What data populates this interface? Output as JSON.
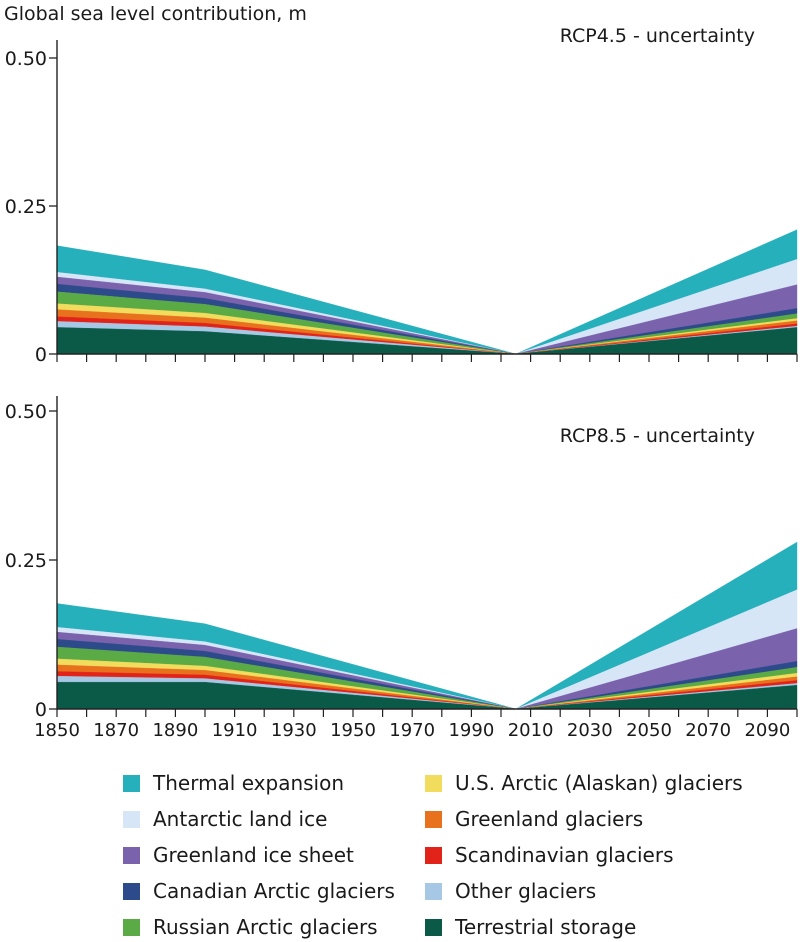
{
  "y_axis_title": "Global sea level contribution, m",
  "chart_data": [
    {
      "type": "area",
      "title": "RCP4.5 - uncertainty",
      "xlabel": "",
      "ylabel": "Global sea level contribution, m",
      "xlim": [
        1850,
        2100
      ],
      "ylim": [
        0,
        0.52
      ],
      "yticks": [
        0,
        0.25,
        0.5
      ],
      "ytick_labels": [
        "0",
        "0.25",
        "0.50"
      ],
      "x": [
        1850,
        1900,
        2005,
        2100
      ],
      "series": [
        {
          "name": "Terrestrial storage",
          "color": "#0b5a48",
          "values": [
            0.045,
            0.038,
            0.0,
            0.045
          ]
        },
        {
          "name": "Other glaciers",
          "color": "#a6c8e4",
          "values": [
            0.01,
            0.008,
            0.0,
            0.002
          ]
        },
        {
          "name": "Scandinavian glaciers",
          "color": "#e2231a",
          "values": [
            0.008,
            0.006,
            0.0,
            0.004
          ]
        },
        {
          "name": "Greenland glaciers",
          "color": "#e8711e",
          "values": [
            0.012,
            0.009,
            0.0,
            0.005
          ]
        },
        {
          "name": "U.S. Arctic (Alaskan) glaciers",
          "color": "#f2dc5d",
          "values": [
            0.01,
            0.008,
            0.0,
            0.004
          ]
        },
        {
          "name": "Russian Arctic glaciers",
          "color": "#5aaa46",
          "values": [
            0.02,
            0.015,
            0.0,
            0.008
          ]
        },
        {
          "name": "Canadian Arctic glaciers",
          "color": "#2d4a8a",
          "values": [
            0.013,
            0.01,
            0.0,
            0.009
          ]
        },
        {
          "name": "Greenland ice sheet",
          "color": "#7b62ad",
          "values": [
            0.012,
            0.01,
            0.0,
            0.04
          ]
        },
        {
          "name": "Antarctic land ice",
          "color": "#d6e6f7",
          "values": [
            0.008,
            0.006,
            0.0,
            0.043
          ]
        },
        {
          "name": "Thermal expansion",
          "color": "#26b0bb",
          "values": [
            0.045,
            0.032,
            0.0,
            0.05
          ]
        }
      ]
    },
    {
      "type": "area",
      "title": "RCP8.5 - uncertainty",
      "xlabel": "",
      "ylabel": "Global sea level contribution, m",
      "xlim": [
        1850,
        2100
      ],
      "ylim": [
        0,
        0.52
      ],
      "yticks": [
        0,
        0.25,
        0.5
      ],
      "ytick_labels": [
        "0",
        "0.25",
        "0.50"
      ],
      "xticks": [
        1850,
        1870,
        1890,
        1910,
        1930,
        1950,
        1970,
        1990,
        2010,
        2030,
        2050,
        2070,
        2090
      ],
      "x": [
        1850,
        1900,
        2005,
        2100
      ],
      "series": [
        {
          "name": "Terrestrial storage",
          "color": "#0b5a48",
          "values": [
            0.045,
            0.045,
            0.0,
            0.04
          ]
        },
        {
          "name": "Other glaciers",
          "color": "#a6c8e4",
          "values": [
            0.01,
            0.006,
            0.0,
            0.003
          ]
        },
        {
          "name": "Scandinavian glaciers",
          "color": "#e2231a",
          "values": [
            0.008,
            0.006,
            0.0,
            0.005
          ]
        },
        {
          "name": "Greenland glaciers",
          "color": "#e8711e",
          "values": [
            0.011,
            0.008,
            0.0,
            0.006
          ]
        },
        {
          "name": "U.S. Arctic (Alaskan) glaciers",
          "color": "#f2dc5d",
          "values": [
            0.01,
            0.007,
            0.0,
            0.006
          ]
        },
        {
          "name": "Russian Arctic glaciers",
          "color": "#5aaa46",
          "values": [
            0.02,
            0.015,
            0.0,
            0.01
          ]
        },
        {
          "name": "Canadian Arctic glaciers",
          "color": "#2d4a8a",
          "values": [
            0.013,
            0.01,
            0.0,
            0.01
          ]
        },
        {
          "name": "Greenland ice sheet",
          "color": "#7b62ad",
          "values": [
            0.012,
            0.01,
            0.0,
            0.055
          ]
        },
        {
          "name": "Antarctic land ice",
          "color": "#d6e6f7",
          "values": [
            0.008,
            0.006,
            0.0,
            0.065
          ]
        },
        {
          "name": "Thermal expansion",
          "color": "#26b0bb",
          "values": [
            0.04,
            0.03,
            0.0,
            0.08
          ]
        }
      ]
    }
  ],
  "legend": {
    "items": [
      {
        "label": "Thermal expansion",
        "color": "#26b0bb",
        "icon": "square-swatch"
      },
      {
        "label": "U.S. Arctic (Alaskan) glaciers",
        "color": "#f2dc5d",
        "icon": "square-swatch"
      },
      {
        "label": "Antarctic land ice",
        "color": "#d6e6f7",
        "icon": "square-swatch"
      },
      {
        "label": "Greenland glaciers",
        "color": "#e8711e",
        "icon": "square-swatch"
      },
      {
        "label": "Greenland ice sheet",
        "color": "#7b62ad",
        "icon": "square-swatch"
      },
      {
        "label": "Scandinavian glaciers",
        "color": "#e2231a",
        "icon": "square-swatch"
      },
      {
        "label": "Canadian Arctic glaciers",
        "color": "#2d4a8a",
        "icon": "square-swatch"
      },
      {
        "label": "Other glaciers",
        "color": "#a6c8e4",
        "icon": "square-swatch"
      },
      {
        "label": "Russian Arctic glaciers",
        "color": "#5aaa46",
        "icon": "square-swatch"
      },
      {
        "label": "Terrestrial storage",
        "color": "#0b5a48",
        "icon": "square-swatch"
      }
    ]
  }
}
